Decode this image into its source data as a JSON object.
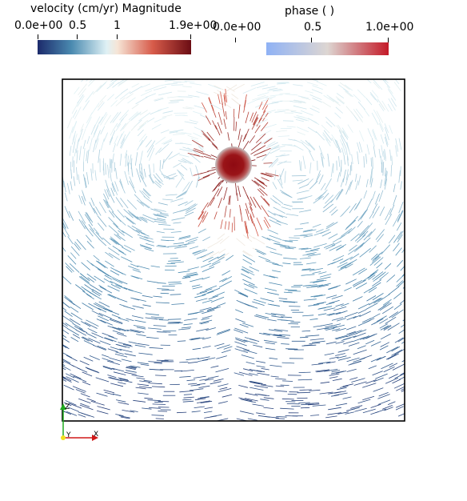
{
  "velocity_bar": {
    "title": "velocity (cm/yr) Magnitude",
    "ticks": [
      "0.0e+00",
      "0.5",
      "1",
      "1.9e+00"
    ]
  },
  "phase_bar": {
    "title": "phase ( )",
    "ticks": [
      "0.0e+00",
      "0.5",
      "1.0e+00"
    ]
  },
  "axes_triad": {
    "y_label": "Y",
    "x_label": "X",
    "z_label": "Z"
  },
  "colors": {
    "velocity_low": "#1c2a6b",
    "velocity_mid": "#f2ece6",
    "velocity_high": "#6b0d14",
    "phase_low": "#8fb2f5",
    "phase_mid": "#ddd6d2",
    "phase_high": "#c41a28"
  }
}
